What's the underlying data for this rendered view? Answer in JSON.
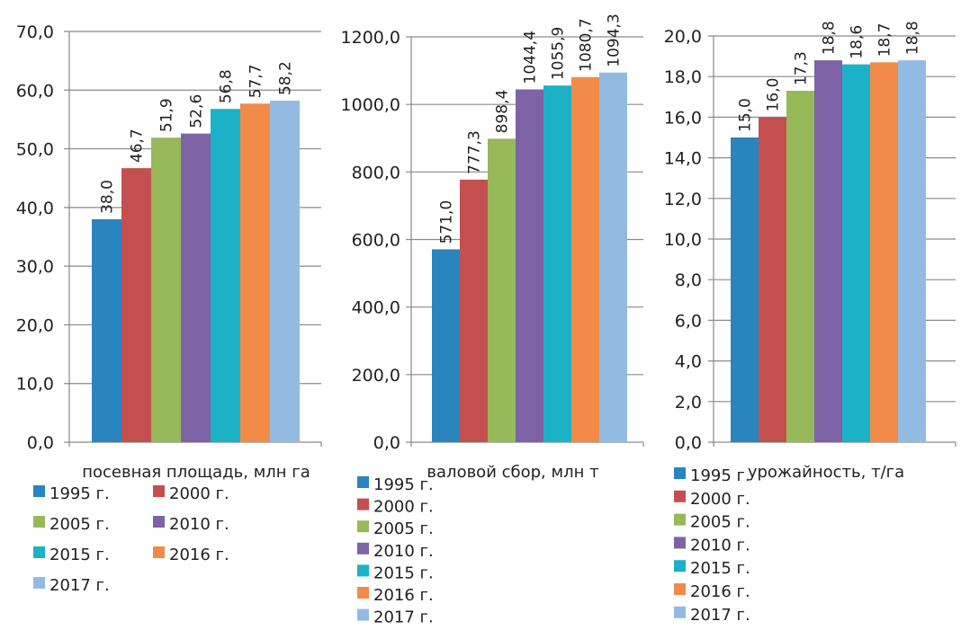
{
  "chart_data": [
    {
      "type": "bar",
      "title": "",
      "xlabel": "посевная площадь, млн га",
      "ylabel": "",
      "ylim": [
        0,
        70
      ],
      "yticks": [
        "0,0",
        "10,0",
        "20,0",
        "30,0",
        "40,0",
        "50,0",
        "60,0",
        "70,0"
      ],
      "grid": true,
      "legend_placement": "bottom",
      "series": [
        {
          "name": "1995 г.",
          "values": [
            38.0
          ],
          "label": "38,0"
        },
        {
          "name": "2000 г.",
          "values": [
            46.7
          ],
          "label": "46,7"
        },
        {
          "name": "2005 г.",
          "values": [
            51.9
          ],
          "label": "51,9"
        },
        {
          "name": "2010 г.",
          "values": [
            52.6
          ],
          "label": "52,6"
        },
        {
          "name": "2015 г.",
          "values": [
            56.8
          ],
          "label": "56,8"
        },
        {
          "name": "2016 г.",
          "values": [
            57.7
          ],
          "label": "57,7"
        },
        {
          "name": "2017 г.",
          "values": [
            58.2
          ],
          "label": "58,2"
        }
      ]
    },
    {
      "type": "bar",
      "title": "",
      "xlabel": "валовой сбор, млн т",
      "ylabel": "",
      "ylim": [
        0,
        1200
      ],
      "yticks": [
        "0,0",
        "200,0",
        "400,0",
        "600,0",
        "800,0",
        "1000,0",
        "1200,0"
      ],
      "grid": true,
      "legend_placement": "bottom",
      "series": [
        {
          "name": "1995 г.",
          "values": [
            571.0
          ],
          "label": "571,0"
        },
        {
          "name": "2000 г.",
          "values": [
            777.3
          ],
          "label": "777,3"
        },
        {
          "name": "2005 г.",
          "values": [
            898.4
          ],
          "label": "898,4"
        },
        {
          "name": "2010 г.",
          "values": [
            1044.4
          ],
          "label": "1044,4"
        },
        {
          "name": "2015 г.",
          "values": [
            1055.9
          ],
          "label": "1055,9"
        },
        {
          "name": "2016 г.",
          "values": [
            1080.7
          ],
          "label": "1080,7"
        },
        {
          "name": "2017 г.",
          "values": [
            1094.3
          ],
          "label": "1094,3"
        }
      ]
    },
    {
      "type": "bar",
      "title": "",
      "xlabel": "урожайность, т/га",
      "ylabel": "",
      "ylim": [
        0,
        20
      ],
      "yticks": [
        "0,0",
        "2,0",
        "4,0",
        "6,0",
        "8,0",
        "10,0",
        "12,0",
        "14,0",
        "16,0",
        "18,0",
        "20,0"
      ],
      "grid": true,
      "legend_placement": "bottom",
      "series": [
        {
          "name": "1995 г.",
          "values": [
            15.0
          ],
          "label": "15,0"
        },
        {
          "name": "2000 г.",
          "values": [
            16.0
          ],
          "label": "16,0"
        },
        {
          "name": "2005 г.",
          "values": [
            17.3
          ],
          "label": "17,3"
        },
        {
          "name": "2010 г.",
          "values": [
            18.8
          ],
          "label": "18,8"
        },
        {
          "name": "2015 г.",
          "values": [
            18.6
          ],
          "label": "18,6"
        },
        {
          "name": "2016 г.",
          "values": [
            18.7
          ],
          "label": "18,7"
        },
        {
          "name": "2017 г.",
          "values": [
            18.8
          ],
          "label": "18,8"
        }
      ]
    }
  ],
  "colors": [
    "#2a84be",
    "#c44f4f",
    "#97b95a",
    "#7d63a6",
    "#1bb2c7",
    "#f28a48",
    "#93bbe1"
  ]
}
